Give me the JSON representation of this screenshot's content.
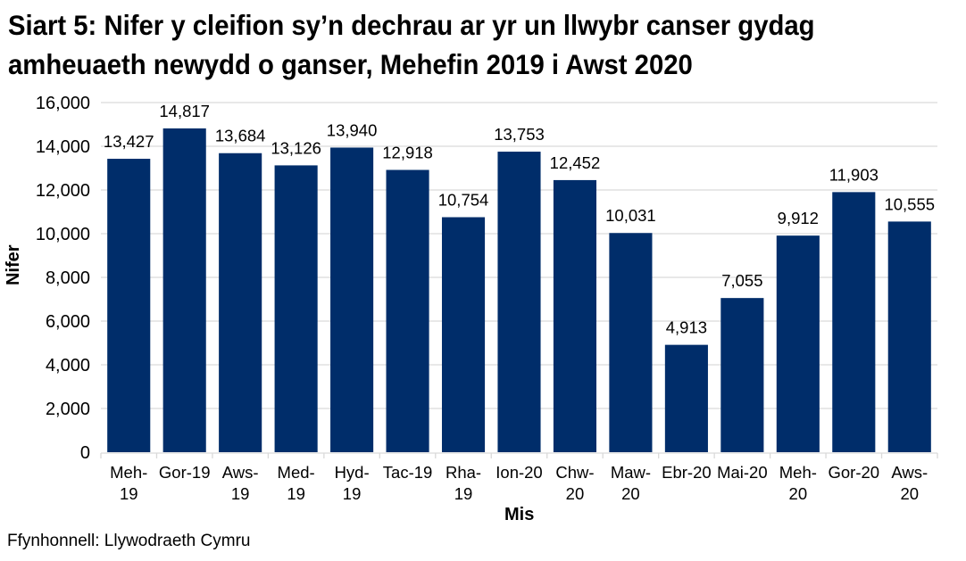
{
  "title": {
    "line1": "Siart 5: Nifer y cleifion sy’n dechrau ar yr un llwybr canser gydag",
    "line2": "amheuaeth newydd o ganser, Mehefin 2019 i Awst 2020"
  },
  "axes": {
    "ylabel": "Nifer",
    "xlabel": "Mis"
  },
  "source": "Ffynhonnell: Llywodraeth Cymru",
  "colors": {
    "bar": "#002d6a",
    "grid": "#d9d9d9",
    "text": "#000000"
  },
  "chart_data": {
    "type": "bar",
    "title": "Siart 5: Nifer y cleifion sy’n dechrau ar yr un llwybr canser gydag amheuaeth newydd o ganser, Mehefin 2019 i Awst 2020",
    "xlabel": "Mis",
    "ylabel": "Nifer",
    "ylim": [
      0,
      16000
    ],
    "yticks": [
      0,
      2000,
      4000,
      6000,
      8000,
      10000,
      12000,
      14000,
      16000
    ],
    "ytick_labels": [
      "0",
      "2,000",
      "4,000",
      "6,000",
      "8,000",
      "10,000",
      "12,000",
      "14,000",
      "16,000"
    ],
    "grid": true,
    "legend": null,
    "categories": [
      "Meh-19",
      "Gor-19",
      "Aws-19",
      "Med-19",
      "Hyd-19",
      "Tac-19",
      "Rha-19",
      "Ion-20",
      "Chw-20",
      "Maw-20",
      "Ebr-20",
      "Mai-20",
      "Meh-20",
      "Gor-20",
      "Aws-20"
    ],
    "category_label_lines": [
      [
        "Meh-",
        "19"
      ],
      [
        "Gor-19"
      ],
      [
        "Aws-",
        "19"
      ],
      [
        "Med-",
        "19"
      ],
      [
        "Hyd-",
        "19"
      ],
      [
        "Tac-19"
      ],
      [
        "Rha-",
        "19"
      ],
      [
        "Ion-20"
      ],
      [
        "Chw-",
        "20"
      ],
      [
        "Maw-",
        "20"
      ],
      [
        "Ebr-20"
      ],
      [
        "Mai-20"
      ],
      [
        "Meh-",
        "20"
      ],
      [
        "Gor-20"
      ],
      [
        "Aws-",
        "20"
      ]
    ],
    "values": [
      13427,
      14817,
      13684,
      13126,
      13940,
      12918,
      10754,
      13753,
      12452,
      10031,
      4913,
      7055,
      9912,
      11903,
      10555
    ],
    "value_labels": [
      "13,427",
      "14,817",
      "13,684",
      "13,126",
      "13,940",
      "12,918",
      "10,754",
      "13,753",
      "12,452",
      "10,031",
      "4,913",
      "7,055",
      "9,912",
      "11,903",
      "10,555"
    ]
  }
}
